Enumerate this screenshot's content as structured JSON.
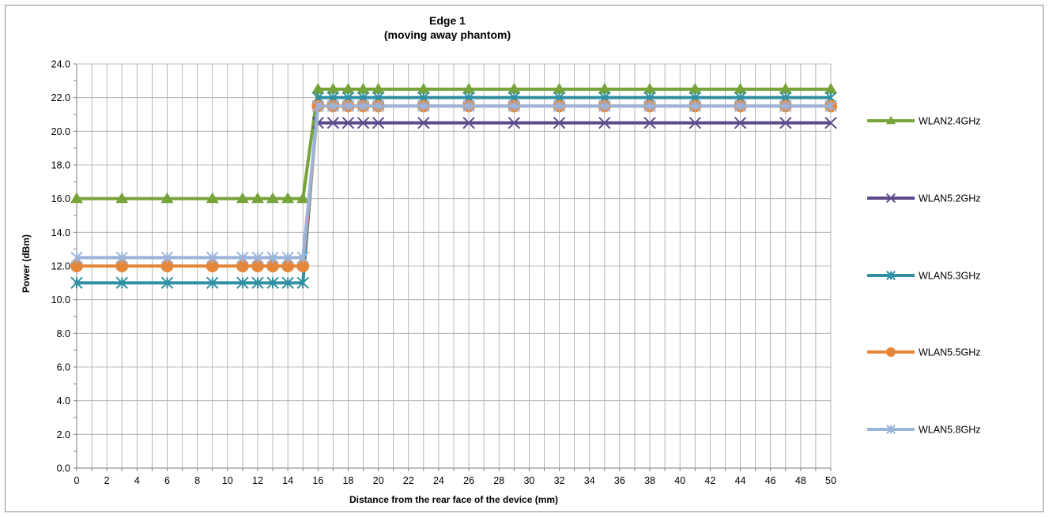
{
  "chart_data": {
    "type": "line",
    "title_lines": [
      "Edge 1",
      "(moving away phantom)"
    ],
    "xlabel": "Distance from the rear face of the device (mm)",
    "ylabel": "Power (dBm)",
    "xlim": [
      0,
      50
    ],
    "ylim": [
      0,
      24
    ],
    "x_ticks": [
      0,
      2,
      4,
      6,
      8,
      10,
      12,
      14,
      16,
      18,
      20,
      22,
      24,
      26,
      28,
      30,
      32,
      34,
      36,
      38,
      40,
      42,
      44,
      46,
      48,
      50
    ],
    "x_tick_labels": [
      "0",
      "2",
      "4",
      "6",
      "8",
      "10",
      "12",
      "14",
      "16",
      "18",
      "20",
      "22",
      "24",
      "26",
      "28",
      "30",
      "32",
      "34",
      "36",
      "38",
      "40",
      "42",
      "44",
      "46",
      "48",
      "50"
    ],
    "y_ticks": [
      0,
      2,
      4,
      6,
      8,
      10,
      12,
      14,
      16,
      18,
      20,
      22,
      24
    ],
    "y_tick_labels": [
      "0.0",
      "2.0",
      "4.0",
      "6.0",
      "8.0",
      "10.0",
      "12.0",
      "14.0",
      "16.0",
      "18.0",
      "20.0",
      "22.0",
      "24.0"
    ],
    "grid": true,
    "legend_position": "right",
    "x": [
      0,
      3,
      6,
      9,
      11,
      12,
      13,
      14,
      15,
      16,
      17,
      18,
      19,
      20,
      23,
      26,
      29,
      32,
      35,
      38,
      41,
      44,
      47,
      50
    ],
    "series": [
      {
        "name": "WLAN2.4GHz",
        "color": "#77a33b",
        "marker": "triangle",
        "values": [
          16.0,
          16.0,
          16.0,
          16.0,
          16.0,
          16.0,
          16.0,
          16.0,
          16.0,
          22.5,
          22.5,
          22.5,
          22.5,
          22.5,
          22.5,
          22.5,
          22.5,
          22.5,
          22.5,
          22.5,
          22.5,
          22.5,
          22.5,
          22.5
        ]
      },
      {
        "name": "WLAN5.2GHz",
        "color": "#5d4a8a",
        "marker": "x",
        "values": [
          null,
          null,
          null,
          null,
          null,
          null,
          null,
          null,
          null,
          20.5,
          20.5,
          20.5,
          20.5,
          20.5,
          20.5,
          20.5,
          20.5,
          20.5,
          20.5,
          20.5,
          20.5,
          20.5,
          20.5,
          20.5
        ]
      },
      {
        "name": "WLAN5.3GHz",
        "color": "#2f8fa3",
        "marker": "star",
        "values": [
          11.0,
          11.0,
          11.0,
          11.0,
          11.0,
          11.0,
          11.0,
          11.0,
          11.0,
          22.0,
          22.0,
          22.0,
          22.0,
          22.0,
          22.0,
          22.0,
          22.0,
          22.0,
          22.0,
          22.0,
          22.0,
          22.0,
          22.0,
          22.0
        ]
      },
      {
        "name": "WLAN5.5GHz",
        "color": "#e5873b",
        "marker": "circle",
        "values": [
          12.0,
          12.0,
          12.0,
          12.0,
          12.0,
          12.0,
          12.0,
          12.0,
          12.0,
          21.5,
          21.5,
          21.5,
          21.5,
          21.5,
          21.5,
          21.5,
          21.5,
          21.5,
          21.5,
          21.5,
          21.5,
          21.5,
          21.5,
          21.5
        ]
      },
      {
        "name": "WLAN5.8GHz",
        "color": "#9cb3da",
        "marker": "star",
        "values": [
          12.5,
          12.5,
          12.5,
          12.5,
          12.5,
          12.5,
          12.5,
          12.5,
          12.5,
          21.5,
          21.5,
          21.5,
          21.5,
          21.5,
          21.5,
          21.5,
          21.5,
          21.5,
          21.5,
          21.5,
          21.5,
          21.5,
          21.5,
          21.5
        ]
      }
    ]
  }
}
